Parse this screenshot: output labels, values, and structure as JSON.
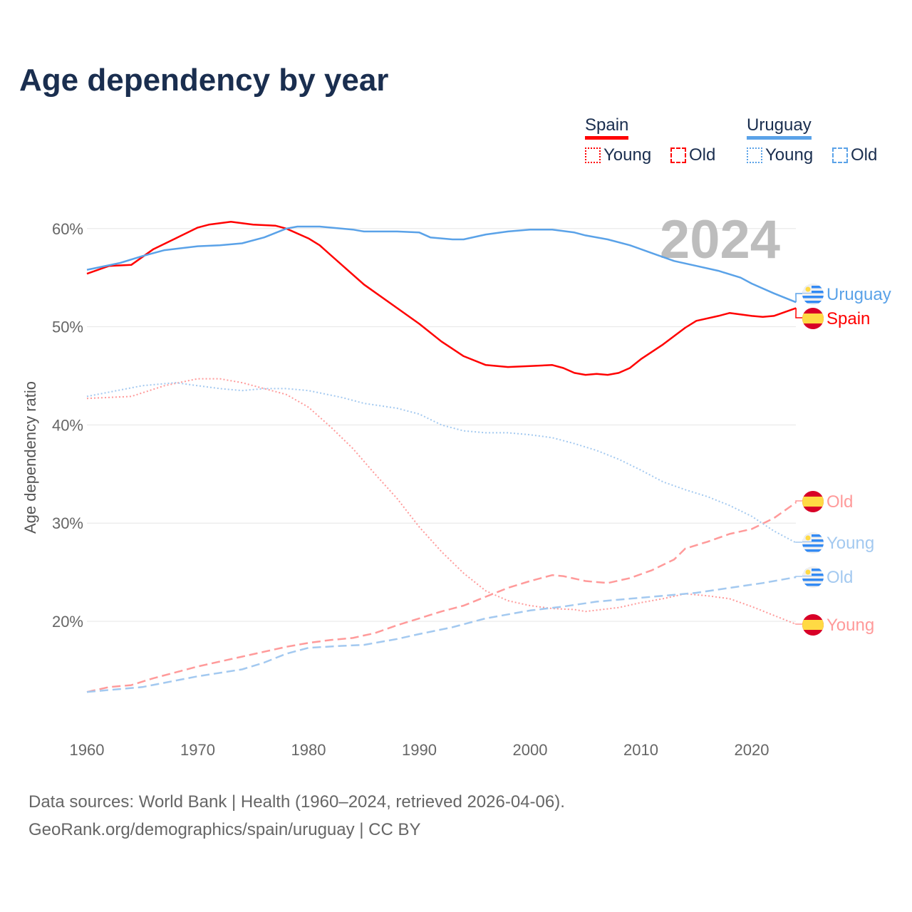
{
  "chart_data": {
    "type": "line",
    "title": "Age dependency by year",
    "ylabel": "Age dependency ratio",
    "xlabel": "",
    "year_watermark": "2024",
    "ylim": [
      10,
      62
    ],
    "xlim": [
      1960,
      2024
    ],
    "x_ticks": [
      "1960",
      "1970",
      "1980",
      "1990",
      "2000",
      "2010",
      "2020"
    ],
    "y_ticks": [
      "20%",
      "30%",
      "40%",
      "50%",
      "60%"
    ],
    "grid": true,
    "legend": {
      "placement": "top-right",
      "countries": [
        {
          "name": "Spain",
          "color": "#ff0000"
        },
        {
          "name": "Uruguay",
          "color": "#5aa2e8"
        }
      ],
      "items": [
        "Young",
        "Old"
      ]
    },
    "series": [
      {
        "name": "Spain",
        "label": "Spain",
        "flag": "spain",
        "color": "#ff0000",
        "style": "solid",
        "width": 2.5,
        "points": [
          [
            1960,
            55.4
          ],
          [
            1962,
            56.2
          ],
          [
            1964,
            56.3
          ],
          [
            1966,
            57.9
          ],
          [
            1968,
            59.0
          ],
          [
            1970,
            60.1
          ],
          [
            1971,
            60.4
          ],
          [
            1973,
            60.7
          ],
          [
            1975,
            60.4
          ],
          [
            1977,
            60.3
          ],
          [
            1978,
            60.0
          ],
          [
            1980,
            59.0
          ],
          [
            1981,
            58.3
          ],
          [
            1982,
            57.3
          ],
          [
            1985,
            54.3
          ],
          [
            1988,
            51.9
          ],
          [
            1990,
            50.3
          ],
          [
            1992,
            48.5
          ],
          [
            1994,
            47.0
          ],
          [
            1996,
            46.1
          ],
          [
            1998,
            45.9
          ],
          [
            2000,
            46.0
          ],
          [
            2002,
            46.1
          ],
          [
            2003,
            45.8
          ],
          [
            2004,
            45.3
          ],
          [
            2005,
            45.1
          ],
          [
            2006,
            45.2
          ],
          [
            2007,
            45.1
          ],
          [
            2008,
            45.3
          ],
          [
            2009,
            45.8
          ],
          [
            2010,
            46.7
          ],
          [
            2012,
            48.2
          ],
          [
            2014,
            49.9
          ],
          [
            2015,
            50.6
          ],
          [
            2017,
            51.1
          ],
          [
            2018,
            51.4
          ],
          [
            2020,
            51.1
          ],
          [
            2021,
            51.0
          ],
          [
            2022,
            51.1
          ],
          [
            2024,
            51.9
          ]
        ]
      },
      {
        "name": "Uruguay",
        "label": "Uruguay",
        "flag": "uruguay",
        "color": "#5aa2e8",
        "style": "solid",
        "width": 2.5,
        "points": [
          [
            1960,
            55.8
          ],
          [
            1963,
            56.5
          ],
          [
            1965,
            57.2
          ],
          [
            1967,
            57.8
          ],
          [
            1970,
            58.2
          ],
          [
            1972,
            58.3
          ],
          [
            1974,
            58.5
          ],
          [
            1976,
            59.1
          ],
          [
            1978,
            60.0
          ],
          [
            1979,
            60.2
          ],
          [
            1981,
            60.2
          ],
          [
            1984,
            59.9
          ],
          [
            1985,
            59.7
          ],
          [
            1988,
            59.7
          ],
          [
            1990,
            59.6
          ],
          [
            1991,
            59.1
          ],
          [
            1993,
            58.9
          ],
          [
            1994,
            58.9
          ],
          [
            1996,
            59.4
          ],
          [
            1998,
            59.7
          ],
          [
            2000,
            59.9
          ],
          [
            2002,
            59.9
          ],
          [
            2004,
            59.6
          ],
          [
            2005,
            59.3
          ],
          [
            2007,
            58.9
          ],
          [
            2009,
            58.3
          ],
          [
            2011,
            57.5
          ],
          [
            2013,
            56.7
          ],
          [
            2015,
            56.2
          ],
          [
            2017,
            55.7
          ],
          [
            2019,
            55.0
          ],
          [
            2020,
            54.4
          ],
          [
            2022,
            53.4
          ],
          [
            2024,
            52.5
          ]
        ]
      },
      {
        "name": "Spain Young",
        "label": "Young",
        "flag": "spain",
        "color": "#ff9a9a",
        "style": "dotted",
        "width": 2,
        "points": [
          [
            1960,
            42.7
          ],
          [
            1964,
            42.9
          ],
          [
            1967,
            44.0
          ],
          [
            1970,
            44.7
          ],
          [
            1972,
            44.7
          ],
          [
            1974,
            44.3
          ],
          [
            1976,
            43.7
          ],
          [
            1978,
            43.1
          ],
          [
            1980,
            41.8
          ],
          [
            1982,
            39.8
          ],
          [
            1984,
            37.6
          ],
          [
            1986,
            35.0
          ],
          [
            1988,
            32.5
          ],
          [
            1990,
            29.6
          ],
          [
            1992,
            27.1
          ],
          [
            1994,
            24.9
          ],
          [
            1996,
            23.1
          ],
          [
            1998,
            22.1
          ],
          [
            2000,
            21.6
          ],
          [
            2002,
            21.3
          ],
          [
            2004,
            21.2
          ],
          [
            2005,
            21.0
          ],
          [
            2008,
            21.4
          ],
          [
            2010,
            21.9
          ],
          [
            2012,
            22.3
          ],
          [
            2014,
            22.8
          ],
          [
            2016,
            22.6
          ],
          [
            2018,
            22.3
          ],
          [
            2020,
            21.5
          ],
          [
            2022,
            20.6
          ],
          [
            2024,
            19.7
          ]
        ]
      },
      {
        "name": "Spain Old",
        "label": "Old",
        "flag": "spain",
        "color": "#ff9a9a",
        "style": "dashed",
        "width": 2.5,
        "points": [
          [
            1960,
            12.8
          ],
          [
            1962,
            13.3
          ],
          [
            1964,
            13.5
          ],
          [
            1966,
            14.2
          ],
          [
            1968,
            14.8
          ],
          [
            1970,
            15.4
          ],
          [
            1972,
            15.9
          ],
          [
            1974,
            16.4
          ],
          [
            1976,
            16.9
          ],
          [
            1978,
            17.4
          ],
          [
            1980,
            17.8
          ],
          [
            1982,
            18.1
          ],
          [
            1984,
            18.3
          ],
          [
            1986,
            18.8
          ],
          [
            1988,
            19.6
          ],
          [
            1990,
            20.3
          ],
          [
            1992,
            21.0
          ],
          [
            1994,
            21.6
          ],
          [
            1996,
            22.5
          ],
          [
            1998,
            23.4
          ],
          [
            2000,
            24.1
          ],
          [
            2002,
            24.7
          ],
          [
            2003,
            24.6
          ],
          [
            2005,
            24.1
          ],
          [
            2007,
            23.9
          ],
          [
            2009,
            24.4
          ],
          [
            2011,
            25.2
          ],
          [
            2013,
            26.3
          ],
          [
            2014,
            27.4
          ],
          [
            2016,
            28.1
          ],
          [
            2018,
            28.9
          ],
          [
            2020,
            29.4
          ],
          [
            2022,
            30.5
          ],
          [
            2024,
            32.1
          ]
        ]
      },
      {
        "name": "Uruguay Young",
        "label": "Young",
        "flag": "uruguay",
        "color": "#a3c9f0",
        "style": "dotted",
        "width": 2,
        "points": [
          [
            1960,
            42.9
          ],
          [
            1965,
            44.0
          ],
          [
            1968,
            44.3
          ],
          [
            1970,
            44.0
          ],
          [
            1972,
            43.7
          ],
          [
            1974,
            43.5
          ],
          [
            1976,
            43.7
          ],
          [
            1978,
            43.7
          ],
          [
            1980,
            43.5
          ],
          [
            1983,
            42.8
          ],
          [
            1985,
            42.2
          ],
          [
            1988,
            41.7
          ],
          [
            1990,
            41.1
          ],
          [
            1992,
            40.0
          ],
          [
            1994,
            39.4
          ],
          [
            1996,
            39.2
          ],
          [
            1998,
            39.2
          ],
          [
            2000,
            39.0
          ],
          [
            2002,
            38.7
          ],
          [
            2004,
            38.1
          ],
          [
            2006,
            37.4
          ],
          [
            2008,
            36.5
          ],
          [
            2010,
            35.4
          ],
          [
            2012,
            34.2
          ],
          [
            2014,
            33.4
          ],
          [
            2016,
            32.7
          ],
          [
            2018,
            31.8
          ],
          [
            2020,
            30.7
          ],
          [
            2022,
            29.2
          ],
          [
            2024,
            28.0
          ]
        ]
      },
      {
        "name": "Uruguay Old",
        "label": "Old",
        "flag": "uruguay",
        "color": "#a3c9f0",
        "style": "dashed",
        "width": 2.5,
        "points": [
          [
            1960,
            12.8
          ],
          [
            1965,
            13.3
          ],
          [
            1970,
            14.4
          ],
          [
            1974,
            15.1
          ],
          [
            1976,
            15.8
          ],
          [
            1978,
            16.7
          ],
          [
            1980,
            17.3
          ],
          [
            1983,
            17.5
          ],
          [
            1985,
            17.6
          ],
          [
            1988,
            18.2
          ],
          [
            1990,
            18.7
          ],
          [
            1993,
            19.4
          ],
          [
            1996,
            20.3
          ],
          [
            2000,
            21.1
          ],
          [
            2003,
            21.5
          ],
          [
            2006,
            22.0
          ],
          [
            2009,
            22.3
          ],
          [
            2012,
            22.6
          ],
          [
            2015,
            22.9
          ],
          [
            2018,
            23.4
          ],
          [
            2021,
            23.9
          ],
          [
            2024,
            24.5
          ]
        ]
      }
    ]
  },
  "footer": {
    "line1": "Data sources: World Bank | Health (1960–2024, retrieved 2026-04-06).",
    "line2": "GeoRank.org/demographics/spain/uruguay | CC BY"
  }
}
